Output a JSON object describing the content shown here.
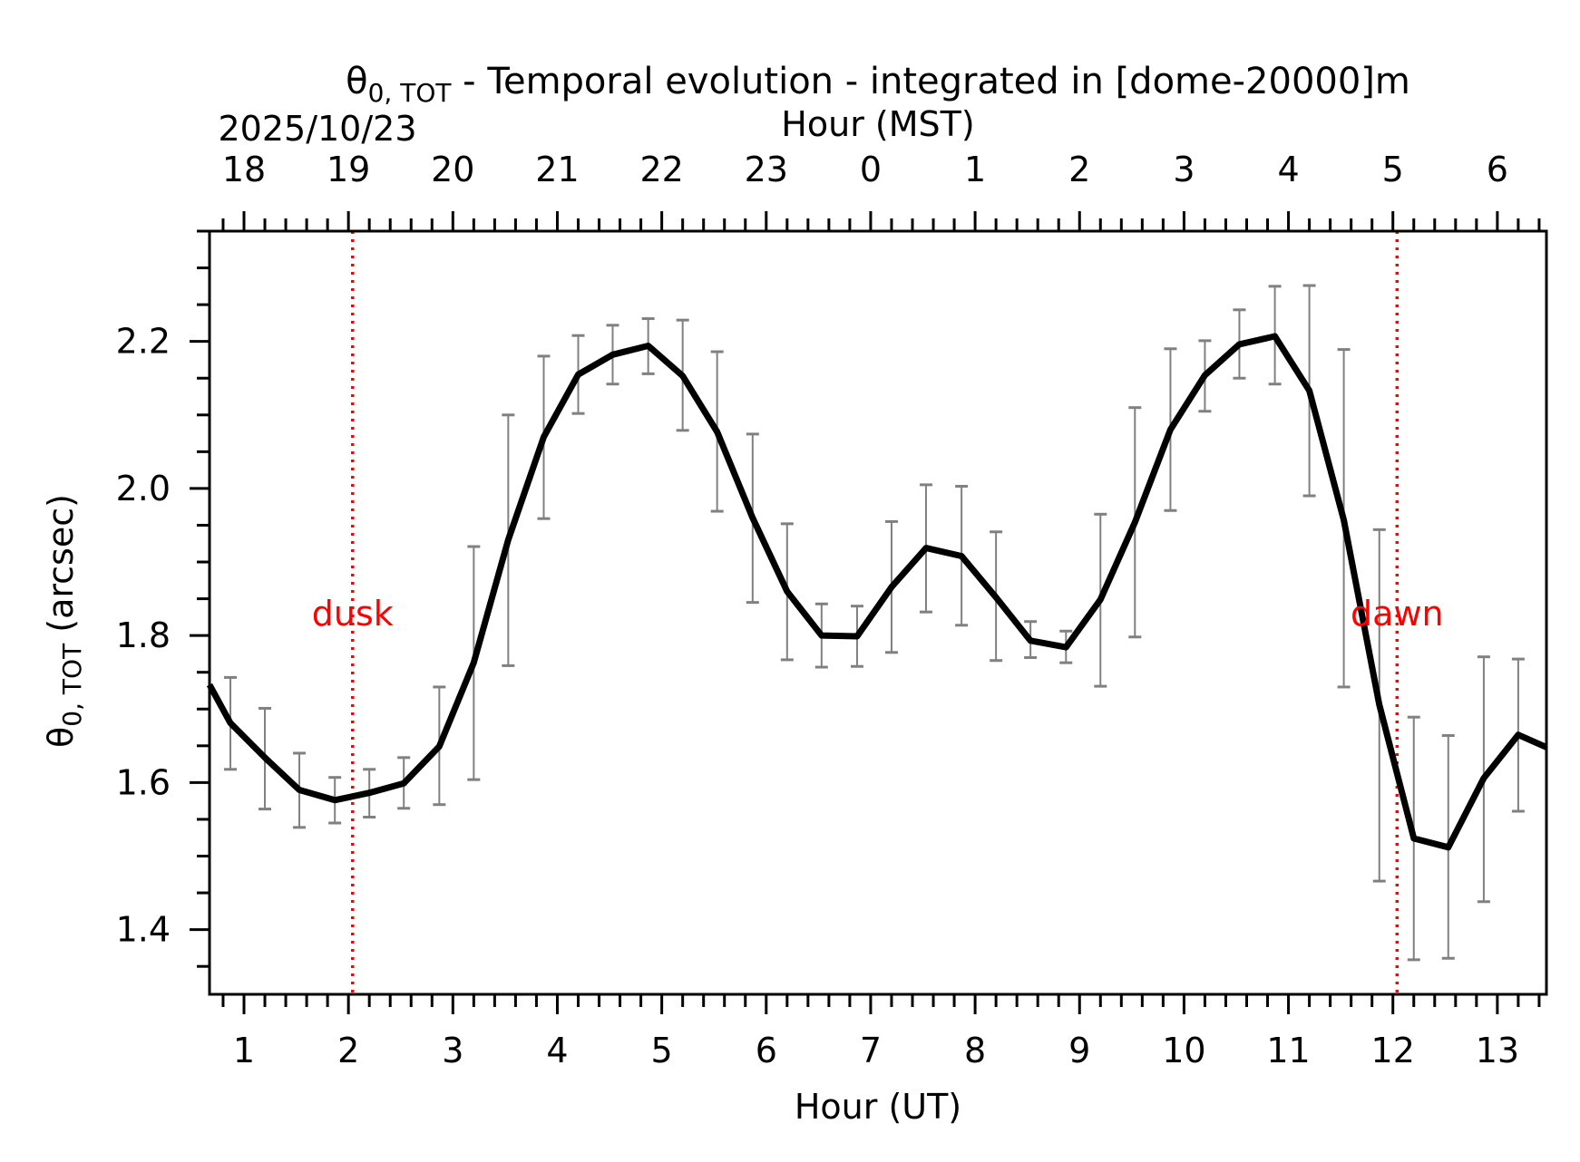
{
  "chart_data": {
    "type": "line",
    "title_symbol": "θ",
    "title_subscript": "0, TOT",
    "title_rest": " - Temporal evolution - integrated in [dome-20000]m",
    "date_label": "2025/10/23",
    "xlabel": "Hour (UT)",
    "x2label": "Hour (MST)",
    "ylabel_symbol": "θ",
    "ylabel_subscript": "0, TOT",
    "ylabel_rest": " (arcsec)",
    "xlim": [
      0.67,
      13.47
    ],
    "ylim": [
      1.312,
      2.35
    ],
    "x_ticks": [
      1,
      2,
      3,
      4,
      5,
      6,
      7,
      8,
      9,
      10,
      11,
      12,
      13
    ],
    "x_tick_labels": [
      "1",
      "2",
      "3",
      "4",
      "5",
      "6",
      "7",
      "8",
      "9",
      "10",
      "11",
      "12",
      "13"
    ],
    "mst_offset_hours": -7,
    "top_tick_labels": [
      "18",
      "19",
      "20",
      "21",
      "22",
      "23",
      "0",
      "1",
      "2",
      "3",
      "4",
      "5",
      "6"
    ],
    "y_ticks": [
      1.4,
      1.6,
      1.8,
      2.0,
      2.2
    ],
    "y_tick_labels": [
      "1.4",
      "1.6",
      "1.8",
      "2.0",
      "2.2"
    ],
    "y_minor_step": 0.05,
    "x_minor_step": 0.2,
    "series": [
      {
        "name": "theta0_tot",
        "color": "#000000",
        "x": [
          0.67,
          0.87,
          1.2,
          1.53,
          1.87,
          2.2,
          2.53,
          2.87,
          3.2,
          3.53,
          3.87,
          4.2,
          4.53,
          4.87,
          5.2,
          5.53,
          5.87,
          6.2,
          6.53,
          6.87,
          7.2,
          7.53,
          7.87,
          8.2,
          8.53,
          8.87,
          9.2,
          9.53,
          9.87,
          10.2,
          10.53,
          10.87,
          11.2,
          11.53,
          11.87,
          12.2,
          12.53,
          12.87,
          13.2,
          13.47
        ],
        "y": [
          1.733,
          1.681,
          1.634,
          1.59,
          1.576,
          1.586,
          1.599,
          1.649,
          1.763,
          1.93,
          2.07,
          2.155,
          2.182,
          2.194,
          2.153,
          2.077,
          1.96,
          1.86,
          1.8,
          1.799,
          1.866,
          1.919,
          1.908,
          1.852,
          1.793,
          1.784,
          1.849,
          1.954,
          2.08,
          2.154,
          2.196,
          2.207,
          2.133,
          1.957,
          1.706,
          1.524,
          1.512,
          1.606,
          1.665,
          1.648
        ]
      }
    ],
    "error_bars": {
      "color": "#808080",
      "x": [
        0.87,
        1.2,
        1.53,
        1.87,
        2.2,
        2.53,
        2.87,
        3.2,
        3.53,
        3.87,
        4.2,
        4.53,
        4.87,
        5.2,
        5.53,
        5.87,
        6.2,
        6.53,
        6.87,
        7.2,
        7.53,
        7.87,
        8.2,
        8.53,
        8.87,
        9.2,
        9.53,
        9.87,
        10.2,
        10.53,
        10.87,
        11.2,
        11.53,
        11.87,
        12.2,
        12.53,
        12.87,
        13.2
      ],
      "low": [
        1.618,
        1.564,
        1.539,
        1.545,
        1.553,
        1.565,
        1.57,
        1.604,
        1.759,
        1.959,
        2.102,
        2.142,
        2.156,
        2.079,
        1.969,
        1.845,
        1.767,
        1.757,
        1.758,
        1.777,
        1.832,
        1.814,
        1.766,
        1.77,
        1.763,
        1.731,
        1.798,
        1.97,
        2.105,
        2.15,
        2.142,
        1.99,
        1.73,
        1.466,
        1.359,
        1.361,
        1.438,
        1.561
      ],
      "high": [
        1.743,
        1.701,
        1.64,
        1.607,
        1.618,
        1.634,
        1.73,
        1.921,
        2.1,
        2.18,
        2.208,
        2.222,
        2.231,
        2.229,
        2.186,
        2.074,
        1.952,
        1.843,
        1.84,
        1.955,
        2.005,
        2.003,
        1.941,
        1.819,
        1.806,
        1.965,
        2.11,
        2.19,
        2.201,
        2.243,
        2.275,
        2.276,
        2.189,
        1.944,
        1.689,
        1.664,
        1.771,
        1.768
      ]
    },
    "annotations": [
      {
        "label": "dusk",
        "x": 2.04,
        "y": 1.83,
        "color": "#ff0000"
      },
      {
        "label": "dawn",
        "x": 12.04,
        "y": 1.83,
        "color": "#ff0000"
      }
    ],
    "grid": false
  }
}
